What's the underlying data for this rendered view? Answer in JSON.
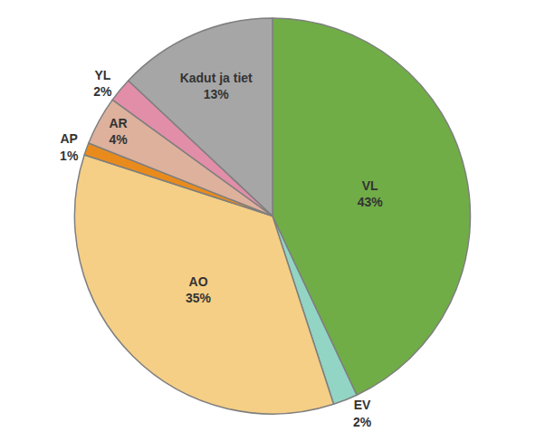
{
  "chart_data": {
    "type": "pie",
    "categories": [
      "VL",
      "EV",
      "AO",
      "AP",
      "AR",
      "YL",
      "Kadut ja tiet"
    ],
    "values": [
      43,
      2,
      35,
      1,
      4,
      2,
      13
    ],
    "value_labels": [
      "43%",
      "2%",
      "35%",
      "1%",
      "4%",
      "2%",
      "13%"
    ],
    "colors": [
      "#70ad47",
      "#92d5c5",
      "#f5cf86",
      "#e98b1c",
      "#ddb19c",
      "#e28ea9",
      "#a6a6a6"
    ],
    "data_labels": true,
    "legend": "none"
  }
}
